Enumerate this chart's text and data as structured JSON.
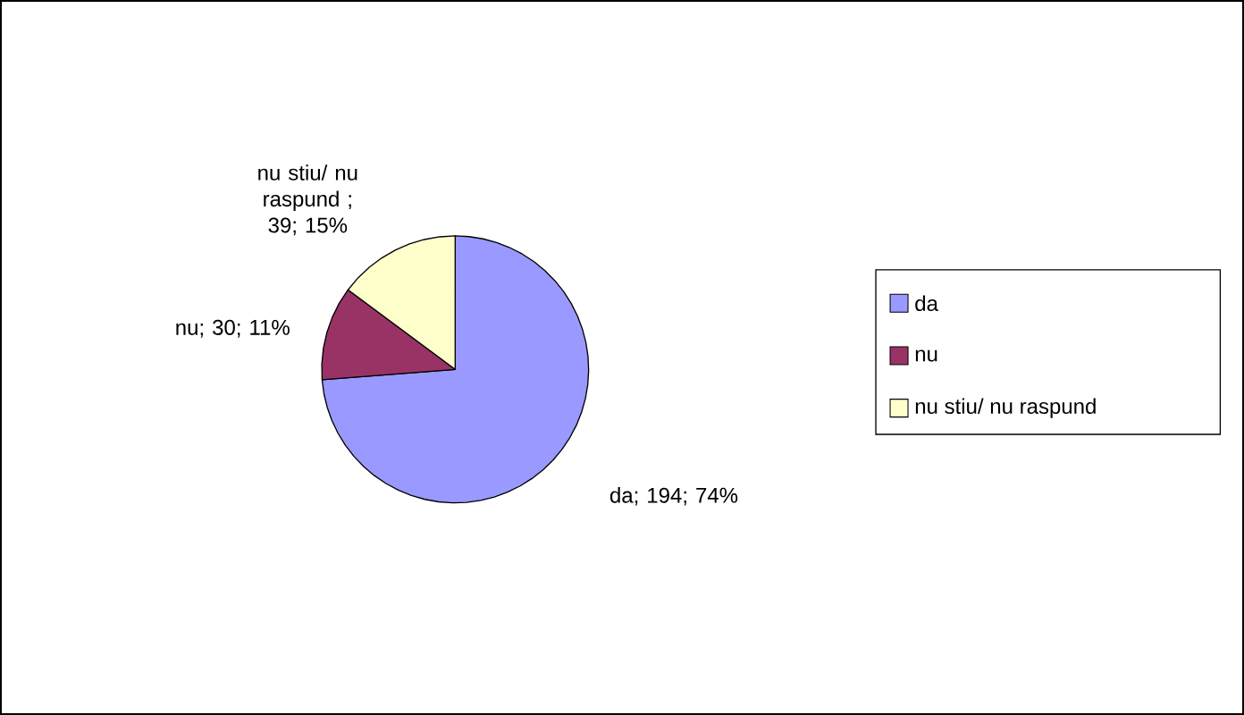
{
  "chart_data": {
    "type": "pie",
    "categories": [
      "da",
      "nu",
      "nu stiu/ nu raspund"
    ],
    "values": [
      194,
      30,
      39
    ],
    "colors": [
      "#9999ff",
      "#993366",
      "#ffffcc"
    ],
    "value_labels": [
      "da; 194; 74%",
      "nu; 30; 11%",
      "nu stiu/ nu raspund ; 39; 15%"
    ],
    "legend": "right"
  }
}
